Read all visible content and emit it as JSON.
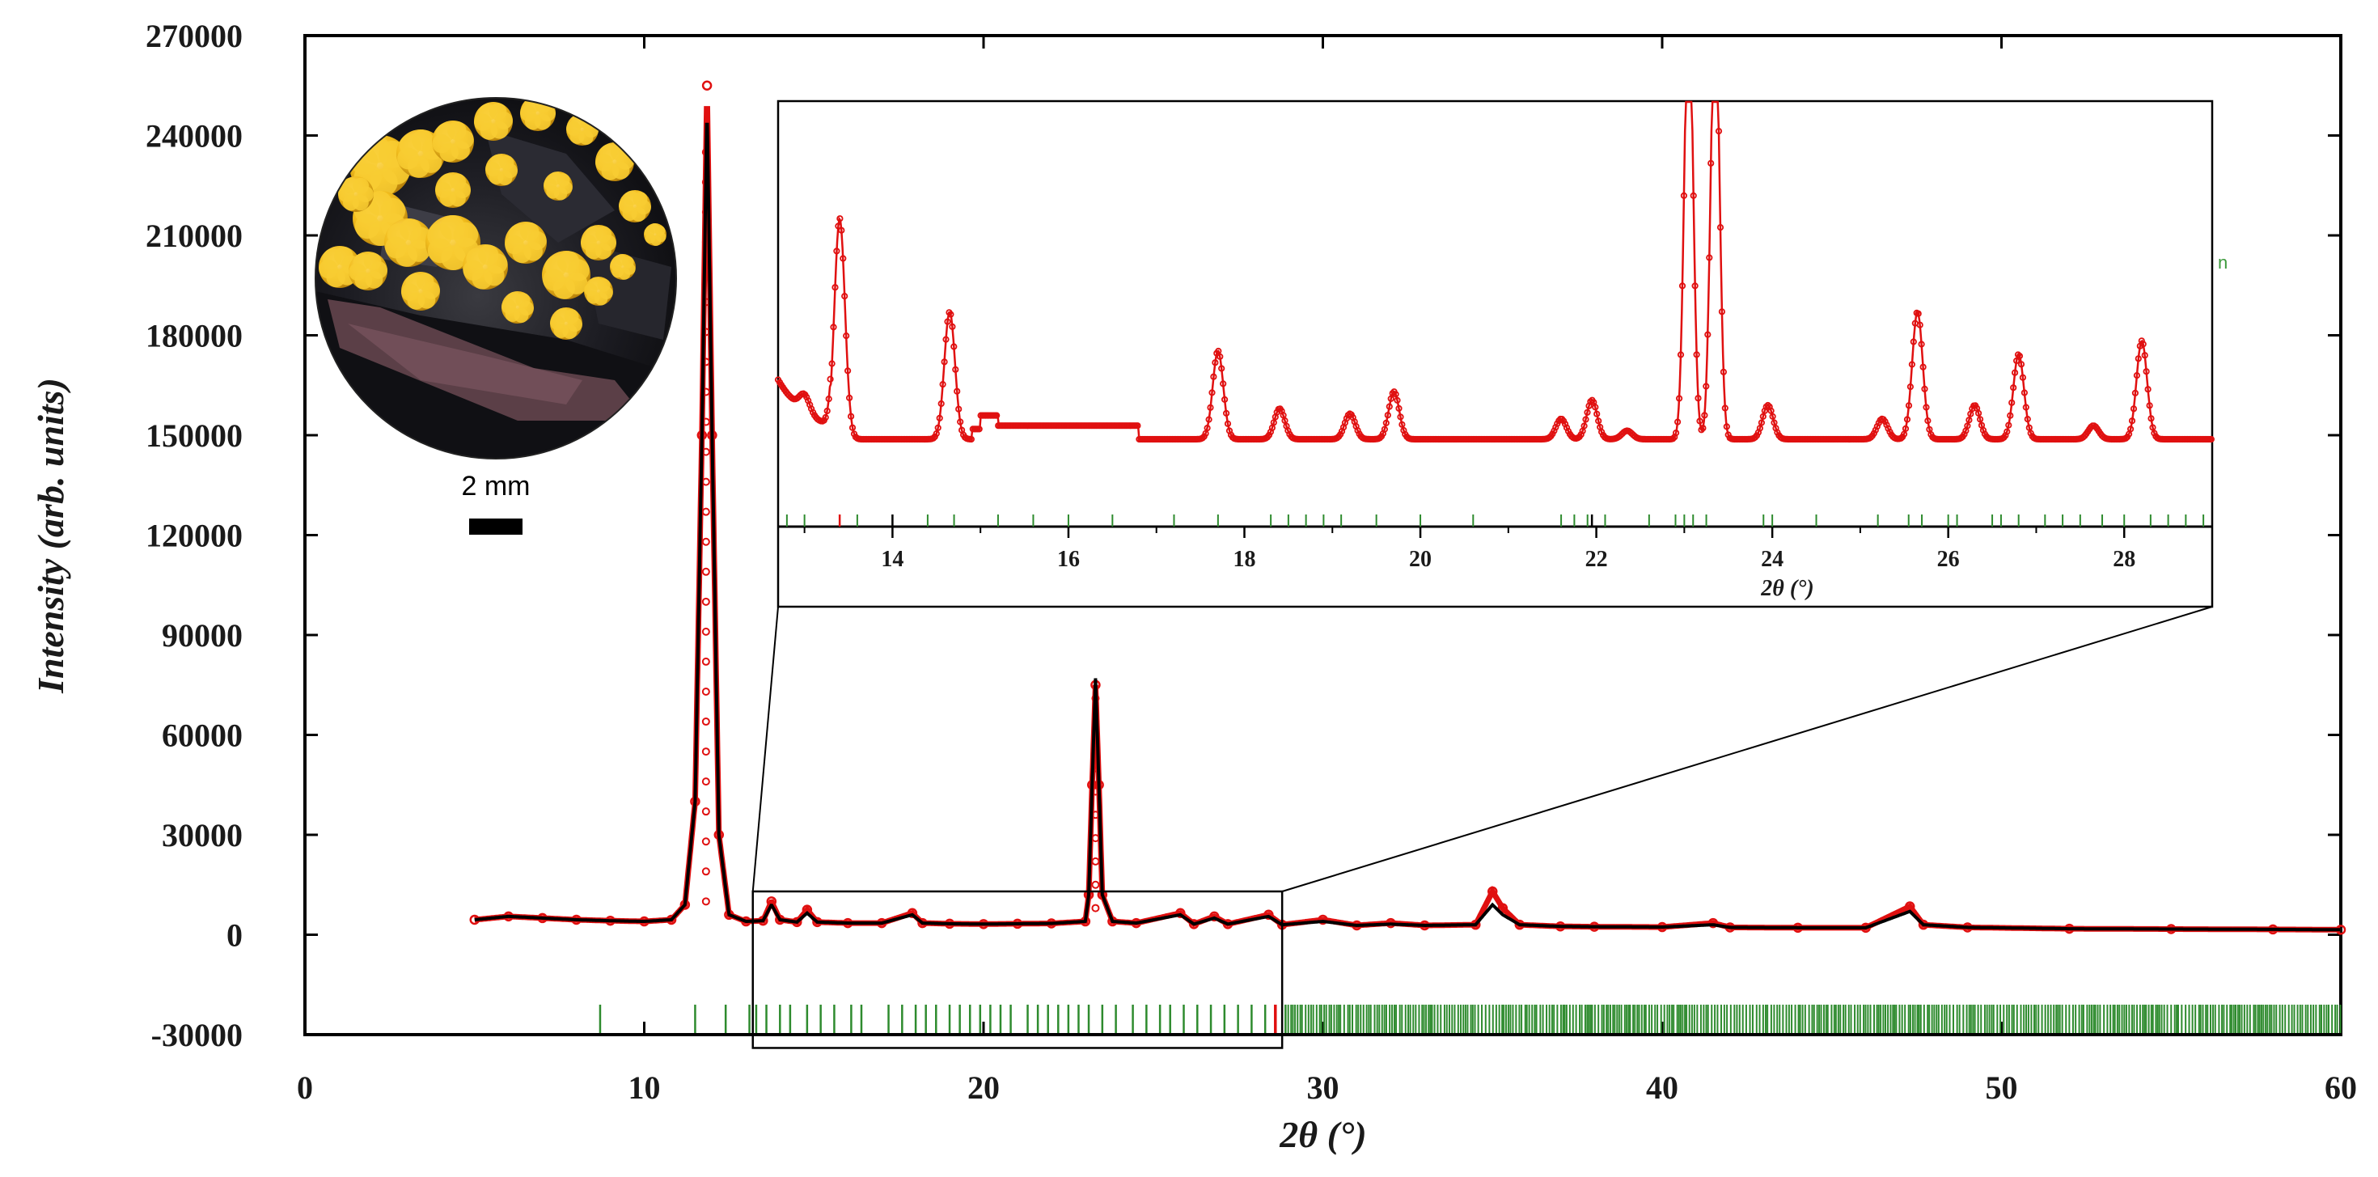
{
  "chart_data": {
    "type": "line",
    "xlabel": "2θ (°)",
    "ylabel": "Intensity (arb. units)",
    "xlim": [
      0,
      60
    ],
    "ylim": [
      -30000,
      270000
    ],
    "x_ticks": [
      0,
      10,
      20,
      30,
      40,
      50,
      60
    ],
    "y_ticks": [
      -30000,
      0,
      30000,
      60000,
      90000,
      120000,
      150000,
      180000,
      210000,
      240000,
      270000
    ],
    "grid": false,
    "series": [
      {
        "color": "#e01010",
        "style": "circles",
        "points": [
          [
            5,
            4500
          ],
          [
            6,
            5500
          ],
          [
            7,
            5000
          ],
          [
            8,
            4500
          ],
          [
            9,
            4200
          ],
          [
            10,
            4000
          ],
          [
            10.8,
            4500
          ],
          [
            11.2,
            9000
          ],
          [
            11.5,
            40000
          ],
          [
            11.7,
            150000
          ],
          [
            11.85,
            255000
          ],
          [
            12.0,
            150000
          ],
          [
            12.2,
            30000
          ],
          [
            12.5,
            6000
          ],
          [
            13,
            4000
          ],
          [
            13.5,
            4200
          ],
          [
            13.75,
            10000
          ],
          [
            14,
            4500
          ],
          [
            14.5,
            3800
          ],
          [
            14.8,
            7500
          ],
          [
            15.1,
            3800
          ],
          [
            16,
            3500
          ],
          [
            17,
            3500
          ],
          [
            17.9,
            6500
          ],
          [
            18.2,
            3500
          ],
          [
            19,
            3300
          ],
          [
            20,
            3200
          ],
          [
            21,
            3300
          ],
          [
            22,
            3400
          ],
          [
            23,
            4000
          ],
          [
            23.1,
            12000
          ],
          [
            23.2,
            45000
          ],
          [
            23.3,
            75000
          ],
          [
            23.4,
            45000
          ],
          [
            23.5,
            12000
          ],
          [
            23.8,
            4000
          ],
          [
            24.5,
            3500
          ],
          [
            25.8,
            6500
          ],
          [
            26.2,
            3200
          ],
          [
            26.8,
            5500
          ],
          [
            27.2,
            3200
          ],
          [
            28.4,
            6000
          ],
          [
            28.8,
            3000
          ],
          [
            30,
            4500
          ],
          [
            31,
            2800
          ],
          [
            32,
            3500
          ],
          [
            33,
            2800
          ],
          [
            34.5,
            3000
          ],
          [
            35.0,
            13000
          ],
          [
            35.3,
            8000
          ],
          [
            35.8,
            3000
          ],
          [
            37,
            2500
          ],
          [
            38,
            2400
          ],
          [
            40,
            2300
          ],
          [
            41.5,
            3500
          ],
          [
            42,
            2200
          ],
          [
            44,
            2100
          ],
          [
            46,
            2100
          ],
          [
            47.3,
            8500
          ],
          [
            47.7,
            3000
          ],
          [
            49,
            2200
          ],
          [
            52,
            1800
          ],
          [
            55,
            1700
          ],
          [
            58,
            1600
          ],
          [
            60,
            1500
          ]
        ]
      },
      {
        "color": "#000000",
        "style": "line",
        "points": [
          [
            5,
            4500
          ],
          [
            6,
            5500
          ],
          [
            7,
            5000
          ],
          [
            8,
            4500
          ],
          [
            9,
            4200
          ],
          [
            10,
            4000
          ],
          [
            10.8,
            4500
          ],
          [
            11.2,
            9000
          ],
          [
            11.5,
            40000
          ],
          [
            11.7,
            150000
          ],
          [
            11.85,
            250000
          ],
          [
            12.0,
            150000
          ],
          [
            12.2,
            30000
          ],
          [
            12.5,
            6000
          ],
          [
            13,
            4000
          ],
          [
            13.5,
            4200
          ],
          [
            13.75,
            9000
          ],
          [
            14,
            4500
          ],
          [
            14.5,
            3800
          ],
          [
            14.8,
            6500
          ],
          [
            15.1,
            3800
          ],
          [
            16,
            3500
          ],
          [
            17,
            3500
          ],
          [
            17.9,
            6000
          ],
          [
            18.2,
            3500
          ],
          [
            19,
            3300
          ],
          [
            20,
            3200
          ],
          [
            21,
            3300
          ],
          [
            22,
            3400
          ],
          [
            23,
            4000
          ],
          [
            23.1,
            12000
          ],
          [
            23.2,
            45000
          ],
          [
            23.3,
            77000
          ],
          [
            23.4,
            45000
          ],
          [
            23.5,
            12000
          ],
          [
            23.8,
            4000
          ],
          [
            24.5,
            3500
          ],
          [
            25.8,
            6000
          ],
          [
            26.2,
            3200
          ],
          [
            26.8,
            5000
          ],
          [
            27.2,
            3200
          ],
          [
            28.4,
            5500
          ],
          [
            28.8,
            3000
          ],
          [
            30,
            4000
          ],
          [
            31,
            2800
          ],
          [
            32,
            3200
          ],
          [
            33,
            2800
          ],
          [
            34.5,
            3000
          ],
          [
            35.0,
            9000
          ],
          [
            35.3,
            6000
          ],
          [
            35.8,
            3000
          ],
          [
            37,
            2500
          ],
          [
            38,
            2400
          ],
          [
            40,
            2300
          ],
          [
            41.5,
            3000
          ],
          [
            42,
            2200
          ],
          [
            44,
            2100
          ],
          [
            46,
            2100
          ],
          [
            47.3,
            7000
          ],
          [
            47.7,
            3000
          ],
          [
            49,
            2200
          ],
          [
            52,
            1800
          ],
          [
            55,
            1700
          ],
          [
            58,
            1600
          ],
          [
            60,
            1500
          ]
        ]
      }
    ],
    "bragg_green": [
      8.7,
      11.5,
      12.4,
      13.1,
      13.3,
      13.6,
      14.0,
      14.3,
      14.8,
      15.2,
      15.6,
      16.1,
      16.4,
      17.2,
      17.6,
      18.0,
      18.3,
      18.6,
      19.0,
      19.3,
      19.6,
      19.9,
      20.2,
      20.5,
      20.8,
      21.3,
      21.6,
      21.9,
      22.2,
      22.5,
      22.8,
      23.1,
      23.5,
      23.9,
      24.4,
      24.8,
      25.2,
      25.5,
      25.9,
      26.3,
      26.7,
      27.1,
      27.5,
      27.9,
      28.3,
      28.9
    ],
    "bragg_green_dense_from": 28.9,
    "bragg_red": [
      28.6
    ],
    "inset": {
      "xlim": [
        12.7,
        29.0
      ],
      "x_ticks": [
        14,
        16,
        18,
        20,
        22,
        24,
        26,
        28
      ],
      "xlabel": "2θ (°)",
      "zoom_region_x": [
        13.2,
        28.8
      ],
      "zoom_region_y": [
        -34000,
        13000
      ],
      "peaks": [
        [
          13.0,
          10
        ],
        [
          13.4,
          130
        ],
        [
          14.65,
          75
        ],
        [
          17.7,
          52
        ],
        [
          18.4,
          18
        ],
        [
          19.2,
          15
        ],
        [
          19.7,
          28
        ],
        [
          21.6,
          12
        ],
        [
          21.95,
          23
        ],
        [
          22.35,
          5
        ],
        [
          23.05,
          260
        ],
        [
          23.35,
          260
        ],
        [
          23.95,
          20
        ],
        [
          25.25,
          12
        ],
        [
          25.65,
          75
        ],
        [
          26.3,
          20
        ],
        [
          26.8,
          50
        ],
        [
          27.65,
          8
        ],
        [
          28.2,
          58
        ]
      ],
      "bragg_green": [
        12.8,
        13.0,
        13.6,
        14.0,
        14.4,
        14.7,
        15.2,
        15.6,
        16.0,
        16.5,
        17.2,
        17.7,
        18.3,
        18.5,
        18.7,
        18.9,
        19.1,
        19.5,
        20.0,
        20.6,
        21.6,
        21.75,
        21.9,
        22.1,
        22.6,
        22.9,
        23.0,
        23.1,
        23.25,
        23.9,
        24.0,
        24.5,
        25.2,
        25.55,
        25.7,
        26.0,
        26.1,
        26.5,
        26.6,
        26.8,
        27.1,
        27.3,
        27.5,
        27.75,
        28.0,
        28.3,
        28.5,
        28.7,
        28.9
      ],
      "bragg_red": [
        13.4
      ],
      "bragg_black": [
        14.0,
        21.95
      ]
    }
  },
  "photo": {
    "scale_label": "2 mm"
  },
  "stray_label": "n",
  "colors": {
    "observed": "#e01010",
    "calculated": "#000000",
    "bragg": "#2e8b2e",
    "frame": "#000000"
  }
}
